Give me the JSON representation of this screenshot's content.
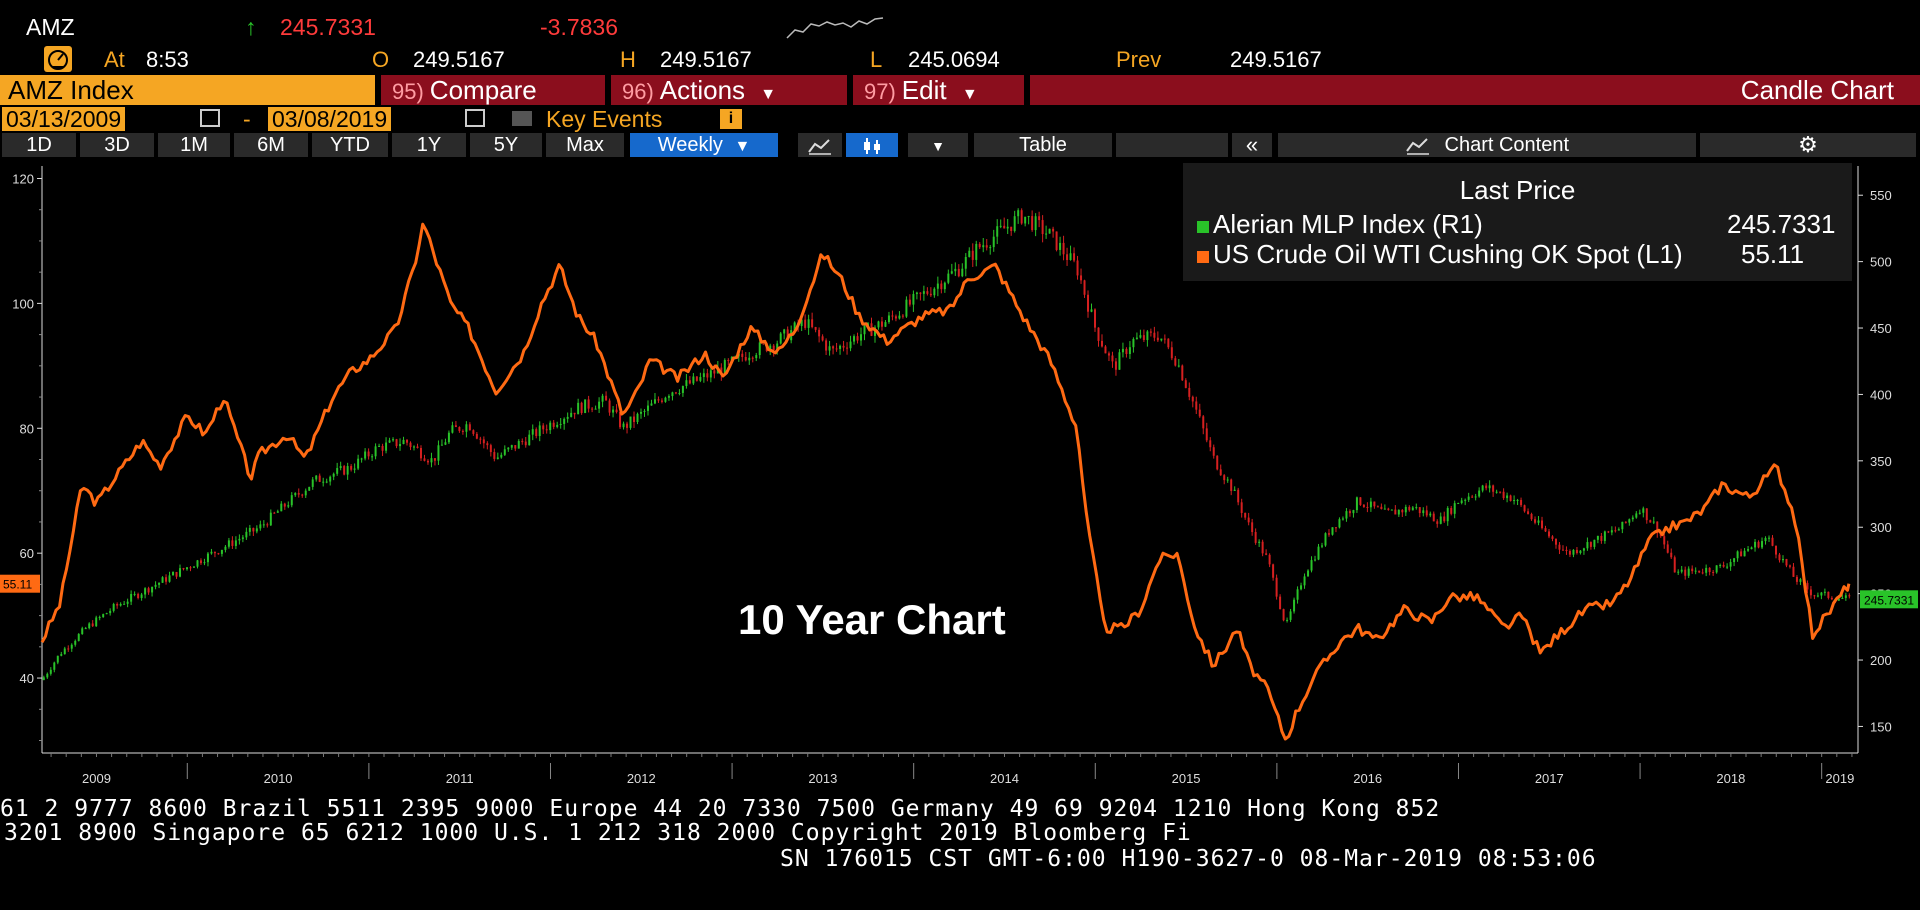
{
  "header": {
    "ticker": "AMZ",
    "up_arrow": "↑",
    "last_price": "245.7331",
    "change": "-3.7836",
    "at_label": "At",
    "time": "8:53",
    "open_label": "O",
    "open": "249.5167",
    "high_label": "H",
    "high": "249.5167",
    "low_label": "L",
    "low": "245.0694",
    "prev_label": "Prev",
    "prev": "249.5167"
  },
  "menu": {
    "security": "AMZ Index",
    "compare_num": "95)",
    "compare": "Compare",
    "actions_num": "96)",
    "actions": "Actions",
    "edit_num": "97)",
    "edit": "Edit",
    "chart_type": "Candle Chart"
  },
  "dates": {
    "start": "03/13/2009",
    "dash": "-",
    "end": "03/08/2019",
    "key_events": "Key Events",
    "info": "i"
  },
  "toolbar": {
    "ranges": [
      "1D",
      "3D",
      "1M",
      "6M",
      "YTD",
      "1Y",
      "5Y",
      "Max"
    ],
    "frequency": "Weekly",
    "table": "Table",
    "collapse": "«",
    "chart_content": "Chart Content"
  },
  "colors": {
    "accent": "#f5a623",
    "menu_bg": "#8b0e1d",
    "toolbar_active": "#1669cc",
    "mlp_up": "#29c329",
    "mlp_down": "#d62020",
    "wti_line": "#ff6a13"
  },
  "annotation": "10 Year Chart",
  "footer": {
    "line1": "61 2 9777 8600 Brazil 5511 2395 9000 Europe 44 20 7330 7500 Germany 49 69 9204 1210 Hong Kong 852",
    "line2": "3201 8900        Singapore 65 6212 1000        U.S. 1 212 318 2000          Copyright 2019 Bloomberg Fi",
    "line3": "SN 176015 CST  GMT-6:00 H190-3627-0 08-Mar-2019 08:53:06"
  },
  "chart_data": {
    "type": "line",
    "title": "",
    "legend": {
      "header": "Last Price",
      "placement": "top-right",
      "entries": [
        {
          "name": "Alerian MLP Index  (R1)",
          "value": "245.7331"
        },
        {
          "name": "US Crude Oil WTI Cushing OK Spot  (L1)",
          "value": "55.11"
        }
      ]
    },
    "x_labels": [
      "2009",
      "2010",
      "2011",
      "2012",
      "2013",
      "2014",
      "2015",
      "2016",
      "2017",
      "2018",
      "2019"
    ],
    "xlim": [
      2009.2,
      2019.2
    ],
    "left_axis": {
      "ticks": [
        40,
        60,
        80,
        100,
        120
      ],
      "ylim": [
        28,
        122
      ],
      "last_label": "55.11"
    },
    "right_axis": {
      "ticks": [
        150,
        200,
        250,
        300,
        350,
        400,
        450,
        500,
        550
      ],
      "ylim": [
        130,
        572
      ],
      "last_label": "245.7331"
    },
    "grid": false,
    "series": [
      {
        "name": "US Crude Oil WTI Cushing OK Spot  (L1)",
        "axis": "left",
        "x": [
          2009.2,
          2009.3,
          2009.42,
          2009.5,
          2009.6,
          2009.75,
          2009.85,
          2010.0,
          2010.1,
          2010.2,
          2010.35,
          2010.4,
          2010.55,
          2010.65,
          2010.8,
          2010.9,
          2011.0,
          2011.15,
          2011.25,
          2011.3,
          2011.45,
          2011.55,
          2011.7,
          2011.85,
          2011.95,
          2012.05,
          2012.15,
          2012.25,
          2012.4,
          2012.48,
          2012.55,
          2012.7,
          2012.85,
          2012.95,
          2013.1,
          2013.25,
          2013.35,
          2013.5,
          2013.6,
          2013.7,
          2013.85,
          2013.95,
          2014.05,
          2014.2,
          2014.3,
          2014.45,
          2014.6,
          2014.75,
          2014.9,
          2014.95,
          2015.05,
          2015.15,
          2015.25,
          2015.35,
          2015.45,
          2015.55,
          2015.65,
          2015.72,
          2015.78,
          2015.85,
          2015.95,
          2016.05,
          2016.1,
          2016.2,
          2016.35,
          2016.45,
          2016.55,
          2016.7,
          2016.85,
          2016.95,
          2017.1,
          2017.25,
          2017.35,
          2017.45,
          2017.55,
          2017.7,
          2017.85,
          2017.95,
          2018.05,
          2018.15,
          2018.25,
          2018.35,
          2018.45,
          2018.6,
          2018.75,
          2018.85,
          2018.95,
          2019.05,
          2019.15
        ],
        "values": [
          46,
          52,
          71,
          68,
          72,
          78,
          74,
          82,
          79,
          85,
          72,
          76,
          79,
          75,
          85,
          89,
          91,
          96,
          106,
          113,
          100,
          96,
          86,
          92,
          100,
          106,
          98,
          94,
          82,
          86,
          91,
          88,
          92,
          88,
          96,
          92,
          96,
          108,
          104,
          98,
          94,
          96,
          98,
          99,
          104,
          106,
          98,
          91,
          80,
          66,
          48,
          48,
          51,
          59,
          60,
          48,
          42,
          45,
          48,
          42,
          38,
          30,
          34,
          40,
          46,
          48,
          46,
          51,
          49,
          53,
          53,
          48,
          50,
          44,
          47,
          51,
          52,
          56,
          62,
          64,
          65,
          67,
          71,
          69,
          74,
          66,
          47,
          51,
          55.11
        ]
      },
      {
        "name": "Alerian MLP Index  (R1)",
        "axis": "right",
        "x": [
          2009.2,
          2009.3,
          2009.45,
          2009.6,
          2009.8,
          2010.0,
          2010.2,
          2010.4,
          2010.55,
          2010.7,
          2010.9,
          2011.05,
          2011.2,
          2011.35,
          2011.45,
          2011.55,
          2011.7,
          2011.85,
          2012.0,
          2012.15,
          2012.3,
          2012.4,
          2012.5,
          2012.65,
          2012.8,
          2012.95,
          2013.1,
          2013.25,
          2013.4,
          2013.55,
          2013.7,
          2013.85,
          2014.0,
          2014.15,
          2014.25,
          2014.35,
          2014.45,
          2014.6,
          2014.75,
          2014.9,
          2015.0,
          2015.1,
          2015.2,
          2015.35,
          2015.45,
          2015.55,
          2015.65,
          2015.75,
          2015.85,
          2015.95,
          2016.05,
          2016.15,
          2016.3,
          2016.45,
          2016.6,
          2016.75,
          2016.9,
          2017.0,
          2017.15,
          2017.3,
          2017.45,
          2017.6,
          2017.75,
          2017.9,
          2018.0,
          2018.1,
          2018.2,
          2018.35,
          2018.45,
          2018.55,
          2018.7,
          2018.85,
          2018.95,
          2019.05,
          2019.15
        ],
        "values": [
          185,
          205,
          225,
          240,
          255,
          270,
          285,
          300,
          318,
          335,
          345,
          360,
          365,
          350,
          372,
          378,
          352,
          365,
          378,
          390,
          395,
          375,
          385,
          402,
          410,
          420,
          432,
          440,
          455,
          432,
          445,
          455,
          470,
          485,
          495,
          510,
          520,
          535,
          520,
          495,
          450,
          420,
          440,
          445,
          425,
          390,
          352,
          330,
          300,
          275,
          225,
          265,
          300,
          320,
          310,
          315,
          305,
          320,
          330,
          322,
          300,
          280,
          290,
          300,
          315,
          298,
          265,
          268,
          270,
          280,
          292,
          262,
          250,
          248,
          245.7331
        ]
      }
    ]
  }
}
